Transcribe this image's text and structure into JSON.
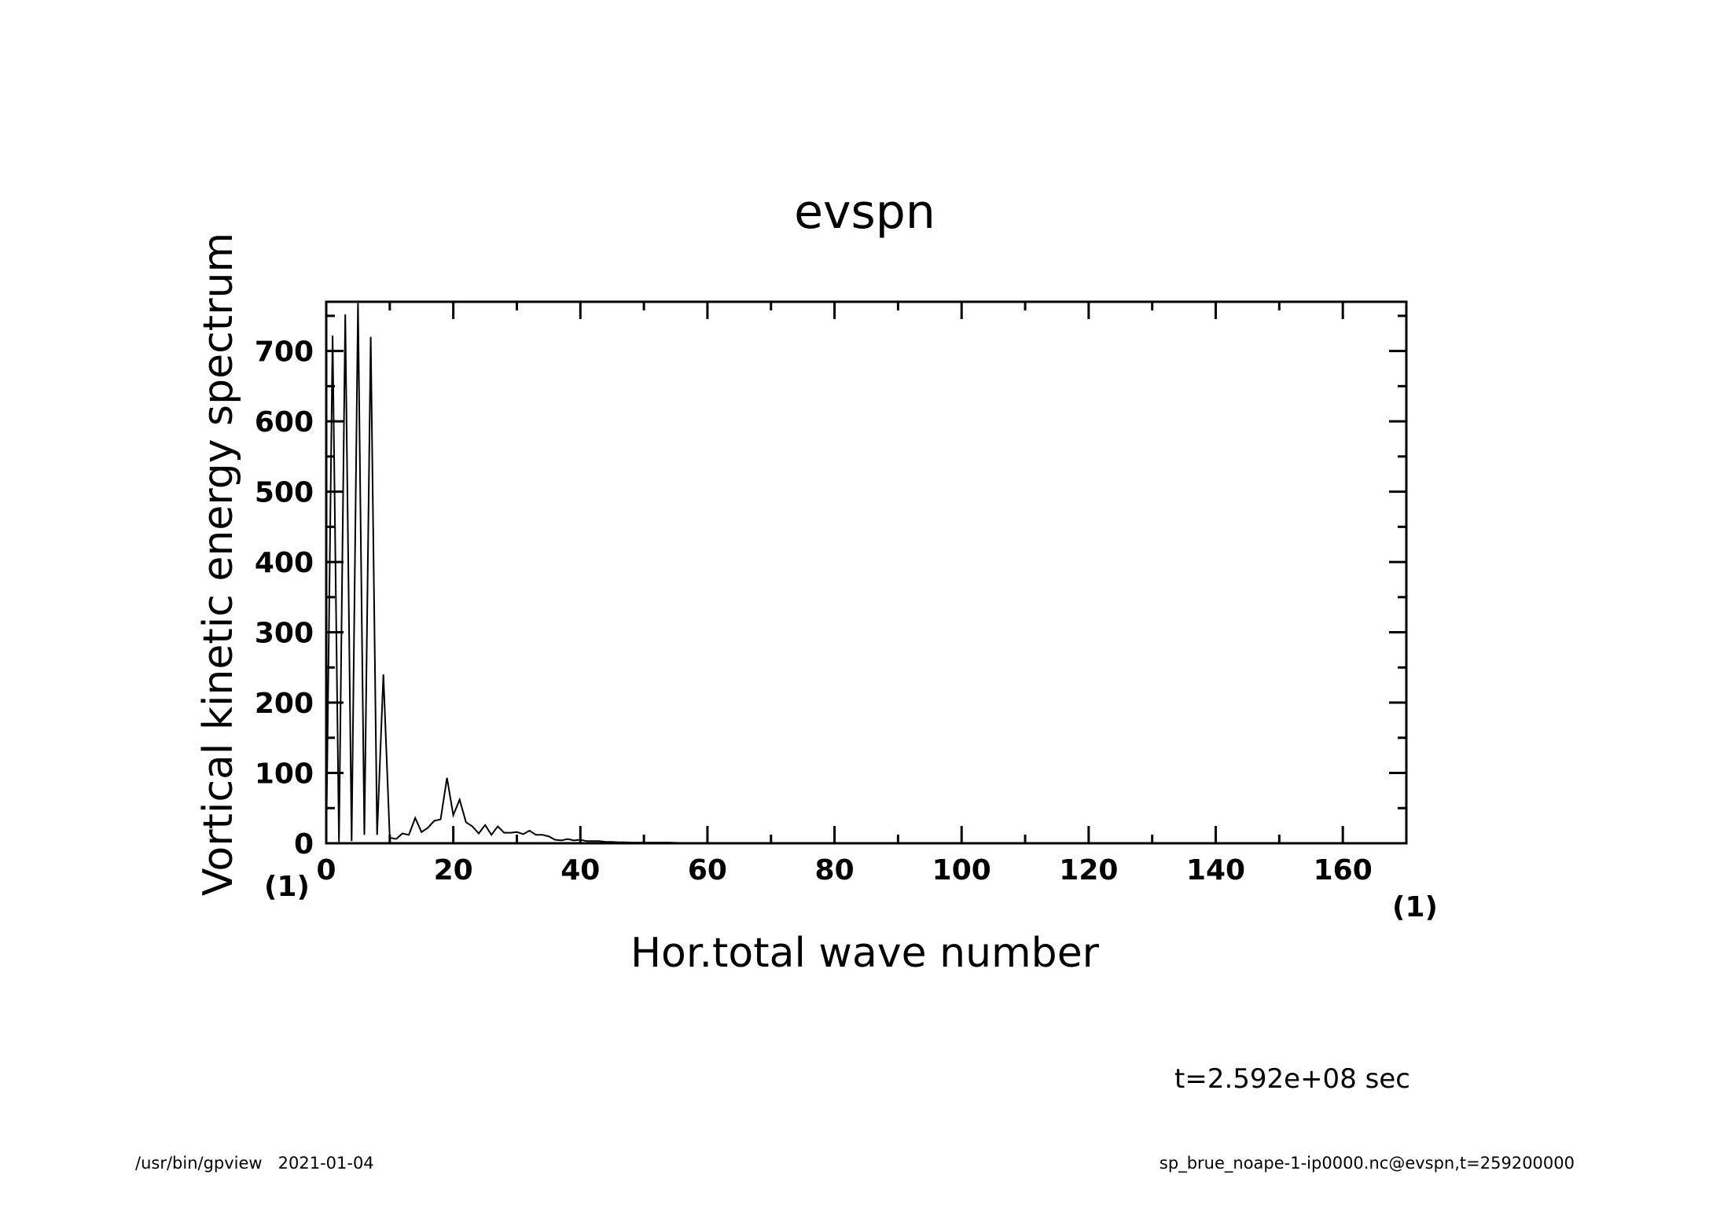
{
  "chart_data": {
    "type": "line",
    "title": "evspn",
    "xlabel": "Hor.total wave number",
    "ylabel": "Vortical kinetic energy spectrum",
    "x_unit": "(1)",
    "y_unit": "(1)",
    "xlim": [
      0,
      170
    ],
    "ylim": [
      0,
      770
    ],
    "x_ticks": [
      "0",
      "20",
      "40",
      "60",
      "80",
      "100",
      "120",
      "140",
      "160"
    ],
    "y_ticks": [
      "0",
      "100",
      "200",
      "300",
      "400",
      "500",
      "600",
      "700"
    ],
    "grid": false,
    "series": [
      {
        "x": [
          0,
          1,
          2,
          3,
          4,
          5,
          6,
          7,
          8,
          9,
          10,
          11,
          12,
          13,
          14,
          15,
          16,
          17,
          18,
          19,
          20,
          21,
          22,
          23,
          24,
          25,
          26,
          27,
          28,
          29,
          30,
          31,
          32,
          33,
          34,
          35,
          36,
          37,
          38,
          39,
          40,
          41,
          42,
          43,
          44,
          45,
          46,
          47,
          48,
          49,
          50,
          52,
          54,
          56,
          58,
          60,
          65,
          70,
          80,
          100,
          120,
          140,
          160,
          170
        ],
        "y": [
          0,
          722,
          2,
          752,
          3,
          768,
          12,
          720,
          12,
          240,
          8,
          6,
          14,
          12,
          36,
          16,
          22,
          32,
          34,
          93,
          40,
          62,
          30,
          24,
          14,
          26,
          12,
          24,
          15,
          15,
          16,
          13,
          18,
          12,
          12,
          10,
          5,
          4,
          6,
          4,
          5,
          3,
          3,
          3,
          2,
          2,
          1.5,
          1.5,
          1,
          1,
          1,
          1,
          1,
          0.5,
          0.5,
          0.5,
          0.3,
          0.2,
          0.1,
          0.1,
          0,
          0,
          0,
          0
        ]
      }
    ]
  },
  "time_info": "t=2.592e+08 sec",
  "footer_left": "/usr/bin/gpview   2021-01-04",
  "footer_right": "sp_brue_noape-1-ip0000.nc@evspn,t=259200000"
}
